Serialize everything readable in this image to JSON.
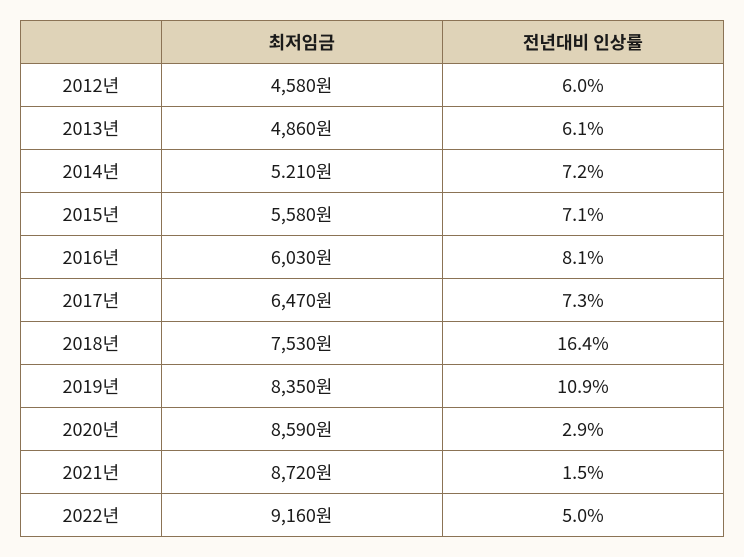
{
  "table": {
    "type": "table",
    "columns": [
      "",
      "최저임금",
      "전년대비 인상률"
    ],
    "column_widths": [
      "20%",
      "40%",
      "40%"
    ],
    "header_bg": "#dfd3b8",
    "cell_bg": "#ffffff",
    "border_color": "#8b7355",
    "font_size": 18,
    "text_color": "#1a1a1a",
    "background_color": "#fdfaf5",
    "rows": [
      [
        "2012년",
        "4,580원",
        "6.0%"
      ],
      [
        "2013년",
        "4,860원",
        "6.1%"
      ],
      [
        "2014년",
        "5.210원",
        "7.2%"
      ],
      [
        "2015년",
        "5,580원",
        "7.1%"
      ],
      [
        "2016년",
        "6,030원",
        "8.1%"
      ],
      [
        "2017년",
        "6,470원",
        "7.3%"
      ],
      [
        "2018년",
        "7,530원",
        "16.4%"
      ],
      [
        "2019년",
        "8,350원",
        "10.9%"
      ],
      [
        "2020년",
        "8,590원",
        "2.9%"
      ],
      [
        "2021년",
        "8,720원",
        "1.5%"
      ],
      [
        "2022년",
        "9,160원",
        "5.0%"
      ]
    ]
  }
}
